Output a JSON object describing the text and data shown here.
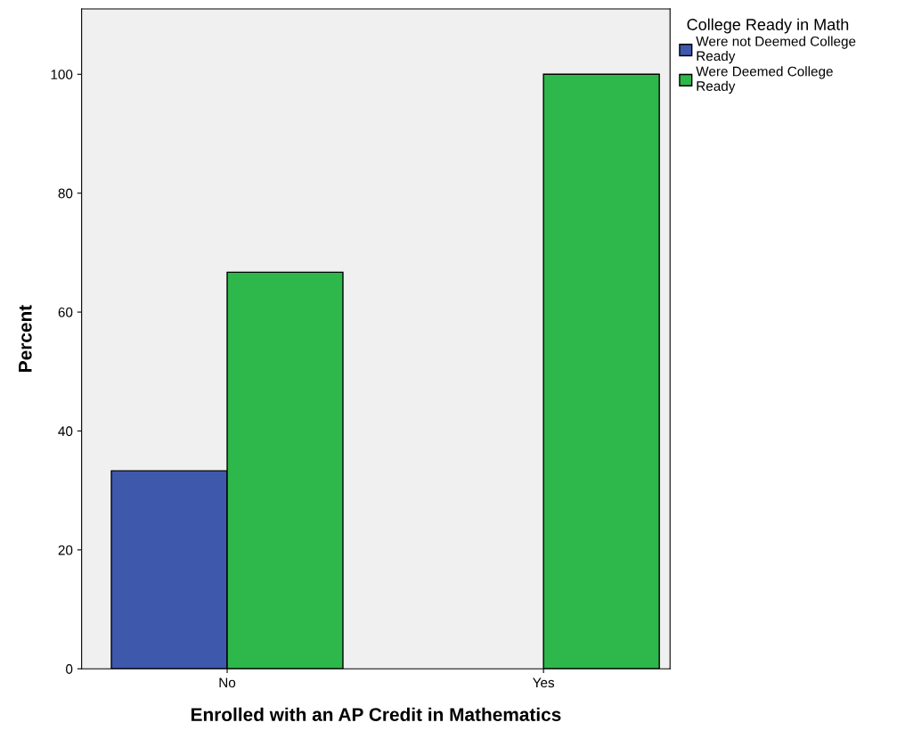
{
  "chart_data": {
    "type": "bar",
    "xlabel": "Enrolled with an AP Credit in Mathematics",
    "ylabel": "Percent",
    "legend_title": "College Ready in Math",
    "categories": [
      "No",
      "Yes"
    ],
    "series": [
      {
        "name": "Were not Deemed College Ready",
        "color": "#3e58ac",
        "values": [
          33.3,
          null
        ]
      },
      {
        "name": "Were Deemed College Ready",
        "color": "#2eb74a",
        "values": [
          66.7,
          100
        ]
      }
    ],
    "ylim": [
      0,
      111
    ],
    "yticks": [
      0,
      20,
      40,
      60,
      80,
      100
    ],
    "grid": false,
    "legend": "top right"
  }
}
